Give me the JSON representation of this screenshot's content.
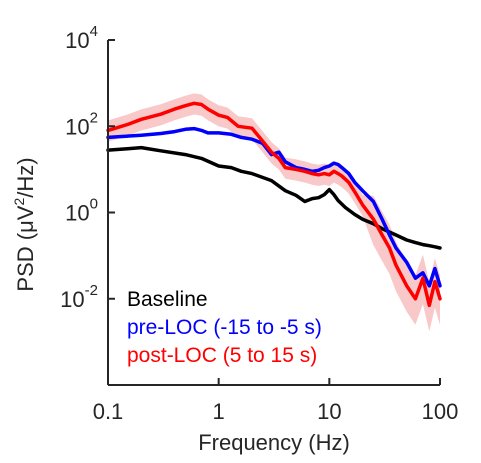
{
  "chart_data": {
    "type": "line",
    "xlabel": "Frequency (Hz)",
    "ylabel_prefix": "PSD (μV",
    "ylabel_sup": "2",
    "ylabel_suffix": "/Hz)",
    "x_scale": "log",
    "y_scale": "log",
    "xlim": [
      0.1,
      100
    ],
    "ylim": [
      0.0001,
      10000
    ],
    "x_ticks": [
      {
        "value": 0.1,
        "label": "0.1"
      },
      {
        "value": 1,
        "label": "1"
      },
      {
        "value": 10,
        "label": "10"
      },
      {
        "value": 100,
        "label": "100"
      }
    ],
    "y_ticks": [
      {
        "value": 0.01,
        "base": "10",
        "exp": "-2"
      },
      {
        "value": 1,
        "base": "10",
        "exp": "0"
      },
      {
        "value": 100,
        "base": "10",
        "exp": "2"
      },
      {
        "value": 10000,
        "base": "10",
        "exp": "4"
      }
    ],
    "grid": false,
    "legend_position": "bottom-left",
    "series": [
      {
        "name": "Baseline",
        "color": "#000000",
        "x": [
          0.1,
          0.15,
          0.2,
          0.3,
          0.5,
          0.7,
          1,
          1.3,
          1.6,
          2,
          3,
          4,
          5,
          6,
          7,
          8,
          9,
          10,
          11,
          12,
          14,
          17,
          20,
          25,
          30,
          40,
          50,
          60,
          70,
          80,
          90,
          100
        ],
        "y": [
          28,
          30,
          32,
          27,
          22,
          18,
          12,
          11,
          9,
          8,
          5.5,
          3.2,
          2.5,
          1.8,
          2.1,
          2.2,
          2.6,
          3.4,
          2.6,
          1.9,
          1.3,
          0.9,
          0.7,
          0.55,
          0.42,
          0.3,
          0.23,
          0.2,
          0.18,
          0.17,
          0.16,
          0.15
        ],
        "band": null
      },
      {
        "name": "pre-LOC (-15 to -5 s)",
        "color": "#0000ff",
        "x": [
          0.1,
          0.2,
          0.3,
          0.4,
          0.5,
          0.6,
          0.7,
          0.8,
          1,
          1.3,
          1.6,
          2,
          2.5,
          3,
          3.5,
          4,
          5,
          6,
          7,
          8,
          9,
          10,
          11,
          12,
          13,
          15,
          17,
          20,
          25,
          30,
          35,
          40,
          50,
          60,
          70,
          80,
          90,
          100
        ],
        "y": [
          55,
          62,
          68,
          75,
          85,
          88,
          80,
          70,
          70,
          65,
          55,
          50,
          40,
          22,
          25,
          15,
          11,
          10,
          9,
          9.5,
          11,
          12,
          14,
          13,
          11,
          8,
          5,
          3.2,
          1.8,
          0.7,
          0.3,
          0.15,
          0.07,
          0.03,
          0.04,
          0.02,
          0.05,
          0.02
        ],
        "band": null
      },
      {
        "name": "post-LOC (5 to 15 s)",
        "color": "#ff0000",
        "x": [
          0.1,
          0.15,
          0.2,
          0.3,
          0.4,
          0.5,
          0.6,
          0.7,
          0.8,
          1,
          1.2,
          1.5,
          2,
          2.5,
          3,
          3.5,
          4,
          5,
          6,
          7,
          8,
          9,
          10,
          11,
          12,
          13,
          15,
          17,
          20,
          25,
          30,
          35,
          40,
          50,
          60,
          70,
          80,
          90,
          100
        ],
        "y": [
          80,
          110,
          145,
          190,
          250,
          300,
          340,
          320,
          250,
          180,
          160,
          100,
          90,
          45,
          25,
          18,
          11,
          10,
          9,
          8,
          7.5,
          8,
          7.5,
          9,
          8,
          7,
          5,
          3,
          1.5,
          0.7,
          0.3,
          0.15,
          0.06,
          0.02,
          0.01,
          0.03,
          0.007,
          0.025,
          0.01
        ],
        "band": {
          "fill": "#f9c8c8",
          "lower_factor": 0.55,
          "upper_factor": 1.7,
          "upper_factor_high_freq": 3.5,
          "lower_factor_high_freq": 0.25
        }
      }
    ]
  }
}
